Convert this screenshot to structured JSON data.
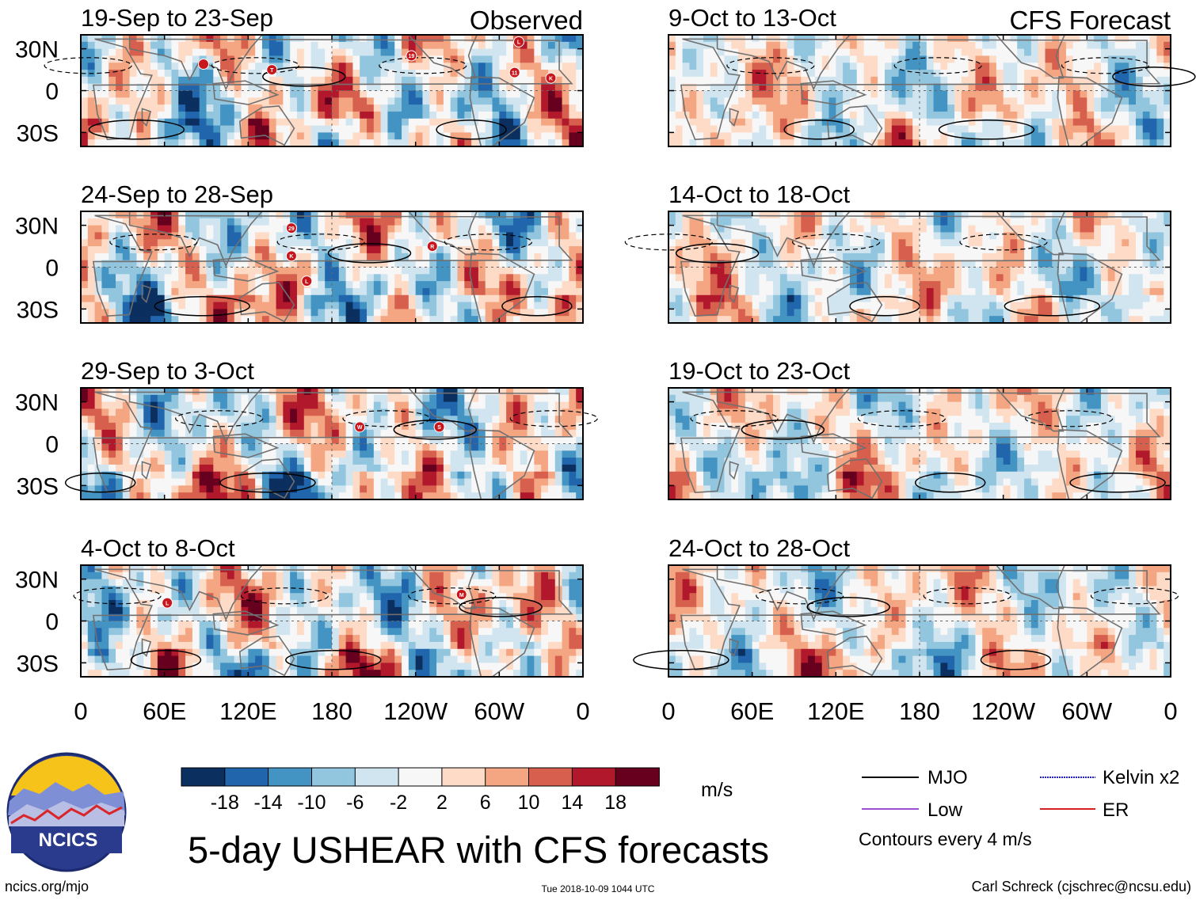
{
  "figure_title": "5-day USHEAR with CFS forecasts",
  "logo": {
    "text": "NCICS"
  },
  "footer": {
    "url": "ncics.org/mjo",
    "timestamp": "Tue 2018-10-09 1044 UTC",
    "author": "Carl Schreck (cjschrec@ncsu.edu)"
  },
  "colorbar": {
    "unit": "m/s",
    "ticks": [
      "-18",
      "-14",
      "-10",
      "-6",
      "-2",
      "2",
      "6",
      "10",
      "14",
      "18"
    ],
    "colors": [
      "#0b2f5e",
      "#2166ac",
      "#4393c3",
      "#92c5de",
      "#d1e5f0",
      "#f7f7f7",
      "#fddbc7",
      "#f4a582",
      "#d6604d",
      "#b2182b",
      "#67001f"
    ]
  },
  "legend": {
    "items": [
      {
        "label": "MJO",
        "color": "#000000"
      },
      {
        "label": "Kelvin x2",
        "color": "#1f1fcf"
      },
      {
        "label": "Low",
        "color": "#9b4fd9"
      },
      {
        "label": "ER",
        "color": "#d62020"
      }
    ],
    "note": "Contours every 4 m/s"
  },
  "chart_data": [
    {
      "type": "heatmap",
      "column": "Observed",
      "column_label": "Observed",
      "title": "19-Sep to 23-Sep",
      "storms": [
        {
          "label": "",
          "lon": 88,
          "lat": 19
        },
        {
          "label": "T",
          "lon": 137,
          "lat": 15
        },
        {
          "label": "19",
          "lon": 237,
          "lat": 25
        },
        {
          "label": "L",
          "lon": 314,
          "lat": 35
        },
        {
          "label": "11",
          "lon": 311,
          "lat": 13
        },
        {
          "label": "K",
          "lon": 337,
          "lat": 9
        }
      ]
    },
    {
      "type": "heatmap",
      "column": "Observed",
      "title": "24-Sep to 28-Sep",
      "storms": [
        {
          "label": "29",
          "lon": 151,
          "lat": 28
        },
        {
          "label": "K",
          "lon": 151,
          "lat": 8
        },
        {
          "label": "R",
          "lon": 252,
          "lat": 15
        },
        {
          "label": "L",
          "lon": 162,
          "lat": -10
        }
      ]
    },
    {
      "type": "heatmap",
      "column": "Observed",
      "title": "29-Sep to 3-Oct",
      "storms": [
        {
          "label": "W",
          "lon": 200,
          "lat": 12
        },
        {
          "label": "S",
          "lon": 257,
          "lat": 12
        }
      ]
    },
    {
      "type": "heatmap",
      "column": "Observed",
      "title": "4-Oct to 8-Oct",
      "storms": [
        {
          "label": "L",
          "lon": 62,
          "lat": 13
        },
        {
          "label": "M",
          "lon": 273,
          "lat": 19
        }
      ]
    },
    {
      "type": "heatmap",
      "column": "CFS Forecast",
      "column_label": "CFS Forecast",
      "title": "9-Oct to 13-Oct",
      "storms": []
    },
    {
      "type": "heatmap",
      "column": "CFS Forecast",
      "title": "14-Oct to 18-Oct",
      "storms": []
    },
    {
      "type": "heatmap",
      "column": "CFS Forecast",
      "title": "19-Oct to 23-Oct",
      "storms": []
    },
    {
      "type": "heatmap",
      "column": "CFS Forecast",
      "title": "24-Oct to 28-Oct",
      "storms": []
    }
  ],
  "axes": {
    "y_ticks": [
      {
        "label": "30N",
        "lat": 30
      },
      {
        "label": "0",
        "lat": 0
      },
      {
        "label": "30S",
        "lat": -30
      }
    ],
    "x_ticks": [
      {
        "label": "0",
        "lon": 0
      },
      {
        "label": "60E",
        "lon": 60
      },
      {
        "label": "120E",
        "lon": 120
      },
      {
        "label": "180",
        "lon": 180
      },
      {
        "label": "120W",
        "lon": 240
      },
      {
        "label": "60W",
        "lon": 300
      },
      {
        "label": "0",
        "lon": 360
      }
    ],
    "lat_range": [
      -40,
      40
    ],
    "lon_range": [
      0,
      360
    ]
  }
}
